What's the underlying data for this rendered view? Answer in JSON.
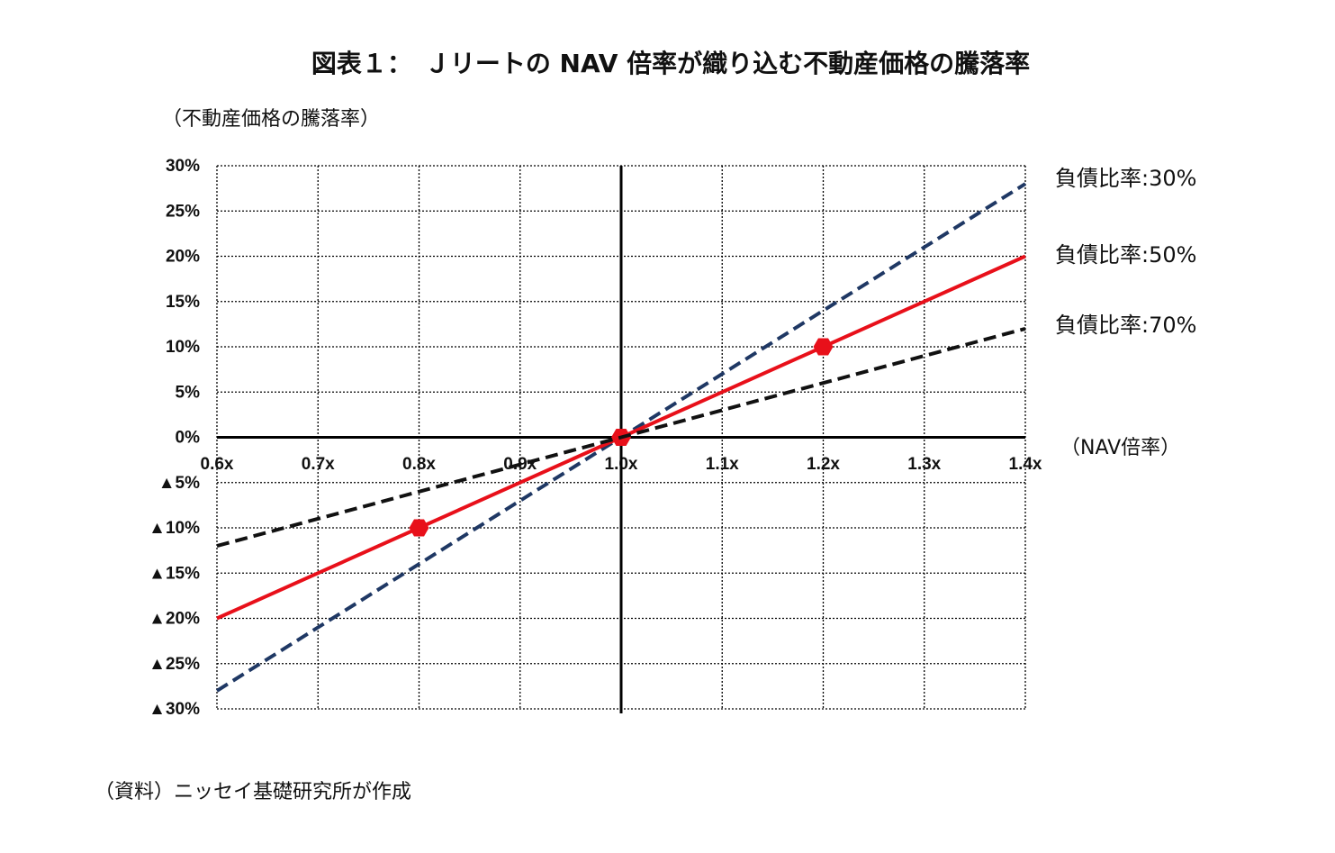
{
  "chart_data": {
    "type": "line",
    "title": "図表１：　Ｊリートの NAV 倍率が織り込む不動産価格の騰落率",
    "y_label": "（不動産価格の騰落率）",
    "x_label": "（NAV倍率）",
    "source": "（資料）ニッセイ基礎研究所が作成",
    "x": [
      0.6,
      0.8,
      1.0,
      1.2,
      1.4
    ],
    "series": [
      {
        "name": "負債比率:30%",
        "color": "#1f3864",
        "dash": "dashed",
        "values": [
          -28,
          -14,
          0,
          14,
          28
        ]
      },
      {
        "name": "負債比率:50%",
        "color": "#e8101a",
        "dash": "solid",
        "values": [
          -20,
          -10,
          0,
          10,
          20
        ],
        "markers": [
          false,
          true,
          true,
          true,
          false
        ]
      },
      {
        "name": "負債比率:70%",
        "color": "#111111",
        "dash": "dashed",
        "values": [
          -12,
          -6,
          0,
          6,
          12
        ]
      }
    ],
    "xlim": [
      0.6,
      1.4
    ],
    "xticks": [
      {
        "value": 0.6,
        "label": "0.6x"
      },
      {
        "value": 0.7,
        "label": "0.7x"
      },
      {
        "value": 0.8,
        "label": "0.8x"
      },
      {
        "value": 0.9,
        "label": "0.9x"
      },
      {
        "value": 1.0,
        "label": "1.0x"
      },
      {
        "value": 1.1,
        "label": "1.1x"
      },
      {
        "value": 1.2,
        "label": "1.2x"
      },
      {
        "value": 1.3,
        "label": "1.3x"
      },
      {
        "value": 1.4,
        "label": "1.4x"
      }
    ],
    "ylim": [
      -30,
      30
    ],
    "yticks": [
      {
        "value": -30,
        "label": "▲30%"
      },
      {
        "value": -25,
        "label": "▲25%"
      },
      {
        "value": -20,
        "label": "▲20%"
      },
      {
        "value": -15,
        "label": "▲15%"
      },
      {
        "value": -10,
        "label": "▲10%"
      },
      {
        "value": -5,
        "label": "▲5%"
      },
      {
        "value": 0,
        "label": "0%"
      },
      {
        "value": 5,
        "label": "5%"
      },
      {
        "value": 10,
        "label": "10%"
      },
      {
        "value": 15,
        "label": "15%"
      },
      {
        "value": 20,
        "label": "20%"
      },
      {
        "value": 25,
        "label": "25%"
      },
      {
        "value": 30,
        "label": "30%"
      }
    ],
    "grid": true
  }
}
